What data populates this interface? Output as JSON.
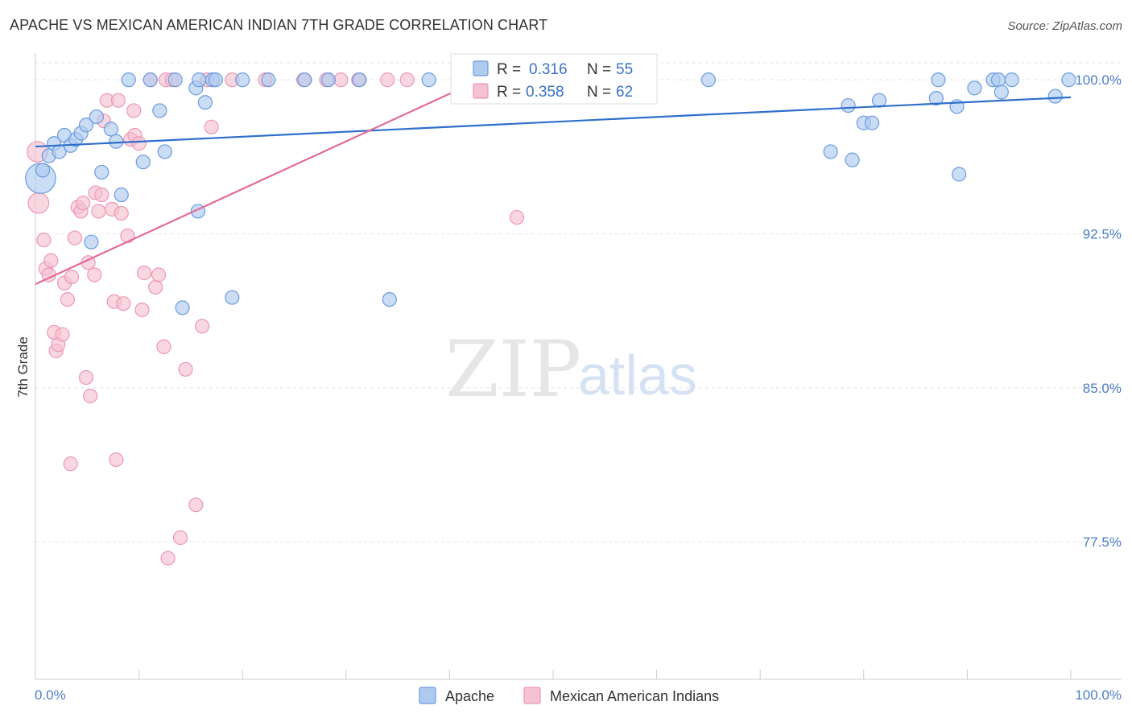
{
  "title": "APACHE VS MEXICAN AMERICAN INDIAN 7TH GRADE CORRELATION CHART",
  "source": "Source: ZipAtlas.com",
  "watermark": {
    "zip": "ZIP",
    "atlas": "atlas"
  },
  "colors": {
    "apache_fill": "#aecbef",
    "apache_stroke": "#6b9be0",
    "apache_line": "#2f6fcb",
    "mexican_fill": "#f6c1d1",
    "mexican_stroke": "#ee97b3",
    "mexican_line": "#e46a95",
    "grid": "#e3e3e3",
    "tick_text": "#4a7cc9"
  },
  "legend": {
    "apache": {
      "r_label": "R =",
      "r_value": "0.316",
      "n_label": "N =",
      "n_value": "55"
    },
    "mexican": {
      "r_label": "R =",
      "r_value": "0.358",
      "n_label": "N =",
      "n_value": "62"
    }
  },
  "chart_data": {
    "type": "scatter",
    "title": "APACHE VS MEXICAN AMERICAN INDIAN 7TH GRADE CORRELATION CHART",
    "xlabel": "",
    "ylabel": "7th Grade",
    "xlim": [
      0,
      100
    ],
    "ylim": [
      70.8,
      101.3
    ],
    "x_tick_labels": [
      "0.0%",
      "100.0%"
    ],
    "y_ticks": [
      {
        "value": 100.0,
        "label": "100.0%"
      },
      {
        "value": 92.5,
        "label": "92.5%"
      },
      {
        "value": 85.0,
        "label": "85.0%"
      },
      {
        "value": 77.5,
        "label": "77.5%"
      }
    ],
    "legend_position": "top-center",
    "series": [
      {
        "name": "Apache",
        "R": 0.316,
        "N": 55,
        "trend": {
          "x": [
            0,
            100
          ],
          "y": [
            96.75,
            99.15
          ]
        },
        "points": [
          [
            0.5,
            95.2,
            2.2
          ],
          [
            0.7,
            95.6,
            1
          ],
          [
            1.3,
            96.3,
            1
          ],
          [
            1.8,
            96.9,
            1
          ],
          [
            2.3,
            96.5,
            1
          ],
          [
            2.8,
            97.3,
            1
          ],
          [
            3.4,
            96.8,
            1
          ],
          [
            3.9,
            97.1,
            1
          ],
          [
            4.4,
            97.4,
            1
          ],
          [
            4.9,
            97.8,
            1
          ],
          [
            5.9,
            98.2,
            1
          ],
          [
            6.4,
            95.5,
            1
          ],
          [
            7.3,
            97.6,
            1
          ],
          [
            7.8,
            97.0,
            1
          ],
          [
            8.3,
            94.4,
            1
          ],
          [
            9.0,
            100.0,
            1
          ],
          [
            11.1,
            100.0,
            1
          ],
          [
            10.4,
            96.0,
            1
          ],
          [
            12.0,
            98.5,
            1
          ],
          [
            12.5,
            96.5,
            1
          ],
          [
            13.5,
            100.0,
            1
          ],
          [
            15.5,
            99.6,
            1
          ],
          [
            15.8,
            100.0,
            1
          ],
          [
            16.4,
            98.9,
            1
          ],
          [
            17.1,
            100.0,
            1
          ],
          [
            17.4,
            100.0,
            1
          ],
          [
            20.0,
            100.0,
            1
          ],
          [
            22.5,
            100.0,
            1
          ],
          [
            26.0,
            100.0,
            1
          ],
          [
            28.3,
            100.0,
            1
          ],
          [
            31.3,
            100.0,
            1
          ],
          [
            38.0,
            100.0,
            1
          ],
          [
            5.4,
            92.1,
            1
          ],
          [
            15.7,
            93.6,
            1
          ],
          [
            14.2,
            88.9,
            1
          ],
          [
            19.0,
            89.4,
            1
          ],
          [
            34.2,
            89.3,
            1
          ],
          [
            65.0,
            100.0,
            1
          ],
          [
            78.5,
            98.75,
            1
          ],
          [
            80.0,
            97.9,
            1
          ],
          [
            80.8,
            97.9,
            1
          ],
          [
            81.5,
            99.0,
            1
          ],
          [
            76.8,
            96.5,
            1
          ],
          [
            78.9,
            96.1,
            1
          ],
          [
            87.2,
            100.0,
            1
          ],
          [
            87.0,
            99.1,
            1
          ],
          [
            89.0,
            98.7,
            1
          ],
          [
            90.7,
            99.6,
            1
          ],
          [
            92.5,
            100.0,
            1
          ],
          [
            93.0,
            100.0,
            1
          ],
          [
            93.3,
            99.4,
            1
          ],
          [
            94.3,
            100.0,
            1
          ],
          [
            99.8,
            100.0,
            1
          ],
          [
            98.5,
            99.2,
            1
          ],
          [
            89.2,
            95.4,
            1
          ]
        ]
      },
      {
        "name": "Mexican American Indians",
        "R": 0.358,
        "N": 62,
        "trend": {
          "x": [
            0,
            42.5
          ],
          "y": [
            90.05,
            99.9
          ]
        },
        "points": [
          [
            0.2,
            96.5,
            1.5
          ],
          [
            0.3,
            94.0,
            1.5
          ],
          [
            0.8,
            92.2,
            1
          ],
          [
            1.0,
            90.8,
            1
          ],
          [
            1.3,
            90.5,
            1
          ],
          [
            1.5,
            91.2,
            1
          ],
          [
            1.8,
            87.7,
            1
          ],
          [
            2.0,
            86.8,
            1
          ],
          [
            2.2,
            87.1,
            1
          ],
          [
            2.6,
            87.6,
            1
          ],
          [
            2.8,
            90.1,
            1
          ],
          [
            3.1,
            89.3,
            1
          ],
          [
            3.5,
            90.4,
            1
          ],
          [
            3.8,
            92.3,
            1
          ],
          [
            4.1,
            93.8,
            1
          ],
          [
            4.4,
            93.6,
            1
          ],
          [
            4.6,
            94.0,
            1
          ],
          [
            4.9,
            85.5,
            1
          ],
          [
            5.1,
            91.1,
            1
          ],
          [
            5.3,
            84.6,
            1
          ],
          [
            5.7,
            90.5,
            1
          ],
          [
            5.8,
            94.5,
            1
          ],
          [
            6.1,
            93.6,
            1
          ],
          [
            6.4,
            94.4,
            1
          ],
          [
            6.6,
            98.0,
            1
          ],
          [
            6.9,
            99.0,
            1
          ],
          [
            7.4,
            93.7,
            1
          ],
          [
            7.6,
            89.2,
            1
          ],
          [
            7.8,
            81.5,
            1
          ],
          [
            8.0,
            99.0,
            1
          ],
          [
            8.3,
            93.5,
            1
          ],
          [
            8.5,
            89.1,
            1
          ],
          [
            8.9,
            92.4,
            1
          ],
          [
            9.2,
            97.1,
            1
          ],
          [
            9.5,
            98.5,
            1
          ],
          [
            9.6,
            97.3,
            1
          ],
          [
            10.0,
            96.9,
            1
          ],
          [
            10.3,
            88.8,
            1
          ],
          [
            10.5,
            90.6,
            1
          ],
          [
            11.1,
            100.0,
            1
          ],
          [
            11.6,
            89.9,
            1
          ],
          [
            11.9,
            90.5,
            1
          ],
          [
            12.4,
            87.0,
            1
          ],
          [
            12.6,
            100.0,
            1
          ],
          [
            13.2,
            100.0,
            1
          ],
          [
            14.0,
            77.7,
            1
          ],
          [
            14.5,
            85.9,
            1
          ],
          [
            15.5,
            79.3,
            1
          ],
          [
            16.1,
            88.0,
            1
          ],
          [
            17.0,
            97.7,
            1
          ],
          [
            12.8,
            76.7,
            1
          ],
          [
            3.4,
            81.3,
            1
          ],
          [
            19.0,
            100.0,
            1
          ],
          [
            22.2,
            100.0,
            1
          ],
          [
            25.9,
            100.0,
            1
          ],
          [
            28.1,
            100.0,
            1
          ],
          [
            29.5,
            100.0,
            1
          ],
          [
            31.2,
            100.0,
            1
          ],
          [
            34.0,
            100.0,
            1
          ],
          [
            35.9,
            100.0,
            1
          ],
          [
            16.6,
            100.0,
            1
          ],
          [
            46.5,
            93.3,
            1
          ]
        ]
      }
    ]
  }
}
